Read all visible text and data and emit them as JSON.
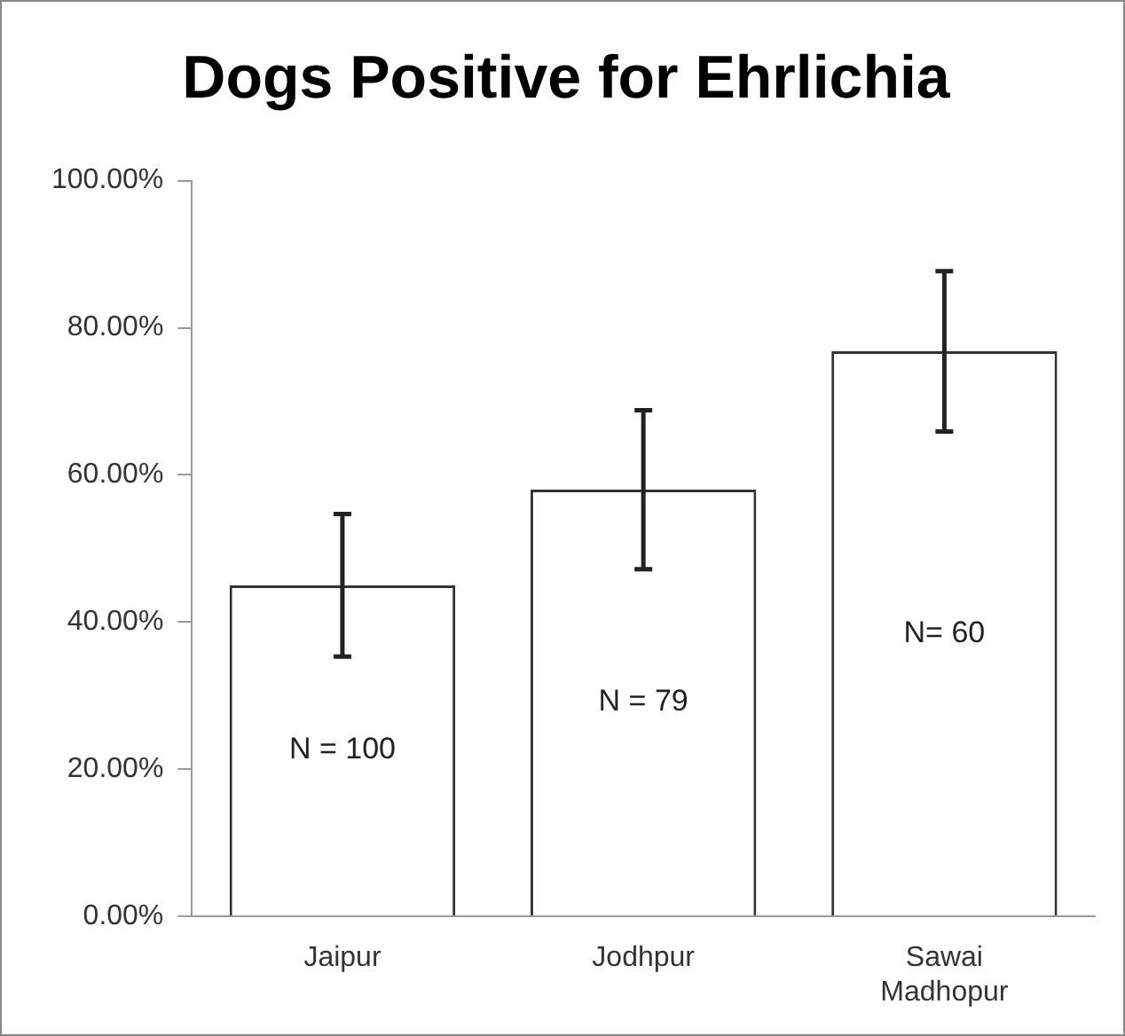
{
  "chart_data": {
    "type": "bar",
    "title": "Dogs Positive for Ehrlichia",
    "categories": [
      "Jaipur",
      "Jodhpur",
      "Sawai Madhopur"
    ],
    "series": [
      {
        "color": "#ffffff",
        "values": [
          45,
          58,
          76.8
        ],
        "errors": [
          9.7,
          10.8,
          10.9
        ]
      }
    ],
    "ylim": [
      0,
      100
    ],
    "yticks": [
      {
        "value": 0,
        "label": "0.00%"
      },
      {
        "value": 20,
        "label": "20.00%"
      },
      {
        "value": 40,
        "label": "40.00%"
      },
      {
        "value": 60,
        "label": "60.00%"
      },
      {
        "value": 80,
        "label": "80.00%"
      },
      {
        "value": 100,
        "label": "100.00%"
      }
    ],
    "annotations": [
      "N = 100",
      "N = 79",
      "N= 60"
    ],
    "grid": false,
    "legend": false
  }
}
